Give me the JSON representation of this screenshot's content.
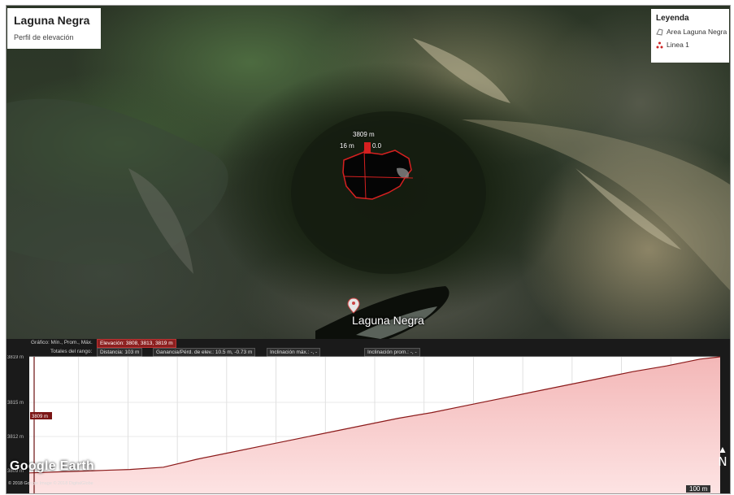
{
  "map": {
    "title": "Laguna Negra",
    "subtitle": "Perfil de elevación",
    "place_label": "Laguna Negra",
    "elevation_label": "3809 m",
    "distance_label": "16 m",
    "distance_label_2": "0.0",
    "logo": "Google Earth",
    "copyright": "© 2018 Google",
    "image_credit": "Image © 2018 DigitalGlobe",
    "scale_label": "100 m",
    "north_label": "N"
  },
  "legend": {
    "title": "Leyenda",
    "items": [
      {
        "label": "Area Laguna Negra",
        "icon": "polygon-icon"
      },
      {
        "label": "Linea 1",
        "icon": "path-icon"
      }
    ]
  },
  "profile": {
    "row1_label": "Gráfico: Mín., Prom., Máx.",
    "elevation": "Elevación: 3808, 3813, 3819 m",
    "row2_label": "Totales del rango:",
    "distance": "Distancia: 103 m",
    "gain": "Ganancia/Pérd. de elev.: 10.5 m, -0.73 m",
    "max_slope": "Inclinación máx.: -, -",
    "avg_slope": "Inclinación prom.: -, -",
    "cursor_value": "3809 m",
    "colors": {
      "line": "#8b1a1a",
      "fill_top": "#f3b7b7",
      "fill_bottom": "#fde3e3"
    }
  },
  "chart_data": {
    "type": "area",
    "ylabel_unit": "m",
    "y_ticks": [
      3809,
      3812,
      3815,
      3819
    ],
    "ylim": [
      3807,
      3819
    ],
    "xlim": [
      0,
      103
    ],
    "grid": true,
    "x": [
      0,
      5,
      10,
      15,
      20,
      25,
      30,
      35,
      40,
      45,
      50,
      55,
      60,
      65,
      70,
      75,
      80,
      85,
      90,
      95,
      100,
      103
    ],
    "y": [
      3808.8,
      3808.9,
      3809.0,
      3809.1,
      3809.3,
      3810.0,
      3810.6,
      3811.2,
      3811.8,
      3812.4,
      3813.0,
      3813.6,
      3814.1,
      3814.7,
      3815.3,
      3815.9,
      3816.5,
      3817.1,
      3817.7,
      3818.2,
      3818.8,
      3819.0
    ]
  }
}
